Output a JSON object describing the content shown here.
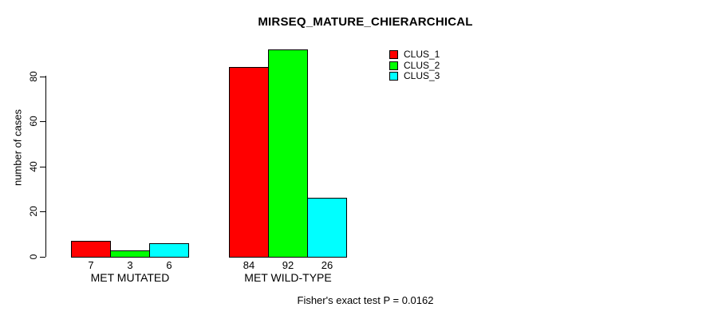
{
  "chart_data": {
    "type": "bar",
    "title": "MIRSEQ_MATURE_CHIERARCHICAL",
    "xlabel": "",
    "ylabel": "number of cases",
    "categories": [
      "MET MUTATED",
      "MET WILD-TYPE"
    ],
    "series": [
      {
        "name": "CLUS_1",
        "color": "#ff0000",
        "values": [
          7,
          84
        ]
      },
      {
        "name": "CLUS_2",
        "color": "#00ff00",
        "values": [
          3,
          92
        ]
      },
      {
        "name": "CLUS_3",
        "color": "#00ffff",
        "values": [
          6,
          26
        ]
      }
    ],
    "yticks": [
      0,
      20,
      40,
      60,
      80
    ],
    "ylim": [
      0,
      92
    ],
    "grid": false,
    "show_bar_values": true,
    "legend_position": "top-right",
    "footnote": "Fisher's exact test P = 0.0162"
  }
}
